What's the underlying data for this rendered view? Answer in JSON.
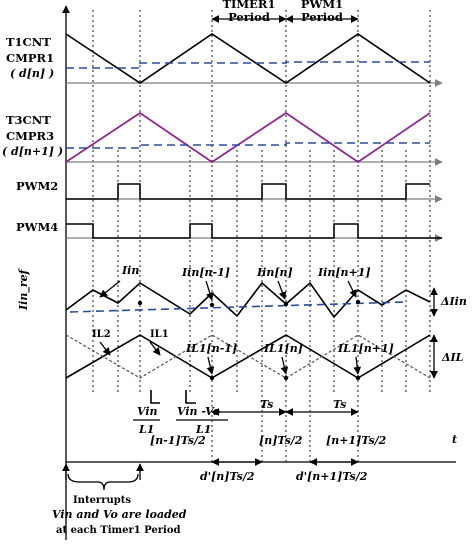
{
  "labels": {
    "timer1_period_top": "TIMER1",
    "timer1_period_bottom": "Period",
    "pwm1_period_top": "PWM1",
    "pwm1_period_bottom": "Period",
    "t1cnt": "T1CNT",
    "cmpr1": "CMPR1",
    "dn": "( d[n] )",
    "t3cnt": "T3CNT",
    "cmpr3": "CMPR3",
    "dn1": "( d[n+1] )",
    "pwm2": "PWM2",
    "pwm4": "PWM4",
    "iin_ref": "Iin_ref",
    "iin": "Iin",
    "iin_nm1": "Iin[n-1]",
    "iin_n": "Iin[n]",
    "iin_np1": "Iin[n+1]",
    "delta_iin": "ΔIin",
    "il2": "IL2",
    "il1": "IL1",
    "il1_nm1": "IL1[n-1]",
    "il1_n": "IL1[n]",
    "il1_np1": "IL1[n+1]",
    "delta_il": "ΔIL",
    "slope1_num": "Vin",
    "slope1_den": "L1",
    "slope2_num": "Vin -Vo",
    "slope2_den": "L1",
    "ts1": "Ts",
    "ts2": "Ts",
    "tick_nm1": "[n-1]Ts/2",
    "tick_n": "[n]Ts/2",
    "tick_np1": "[n+1]Ts/2",
    "t_axis": "t",
    "dprime_n": "d'[n]Ts/2",
    "dprime_np1": "d'[n+1]Ts/2",
    "interrupts_1": "Interrupts",
    "interrupts_2": "Vin and Vo are loaded",
    "interrupts_3": "at each Timer1 Period"
  },
  "colors": {
    "compare_line": "#2b4c9a",
    "t3cnt_wave": "#8e2a8e",
    "axis_gray": "#7f7f7f"
  }
}
